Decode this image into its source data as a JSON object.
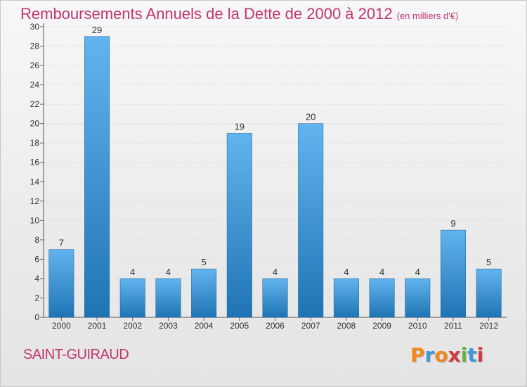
{
  "title": "Remboursements Annuels de la Dette de 2000 à 2012",
  "subtitle": "(en milliers d'€)",
  "commune": "SAINT-GUIRAUD",
  "logo": {
    "text": "Proxiti",
    "letter_colors": [
      "#f08a1c",
      "#3a9ad9",
      "#f08a1c",
      "#d23c3c",
      "#6cb33e",
      "#3a9ad9",
      "#d23c3c"
    ]
  },
  "colors": {
    "bar_light": "#62b4ee",
    "bar_dark": "#1f74b4",
    "title": "#c0376e",
    "grid": "#d9d9d9"
  },
  "chart_data": {
    "type": "bar",
    "categories": [
      "2000",
      "2001",
      "2002",
      "2003",
      "2004",
      "2005",
      "2006",
      "2007",
      "2008",
      "2009",
      "2010",
      "2011",
      "2012"
    ],
    "values": [
      7,
      29,
      4,
      4,
      5,
      19,
      4,
      20,
      4,
      4,
      4,
      9,
      5
    ],
    "value_labels": [
      "7",
      "29",
      "4",
      "4",
      "5",
      "19",
      "4",
      "20",
      "4",
      "4",
      "4",
      "9",
      "5"
    ],
    "yticks": [
      "0",
      "2",
      "4",
      "6",
      "8",
      "10",
      "12",
      "14",
      "16",
      "18",
      "20",
      "22",
      "24",
      "26",
      "28",
      "30"
    ],
    "ylim": [
      0,
      30
    ],
    "grid": true,
    "title": "Remboursements Annuels de la Dette de 2000 à 2012",
    "subtitle": "(en milliers d'€)"
  }
}
